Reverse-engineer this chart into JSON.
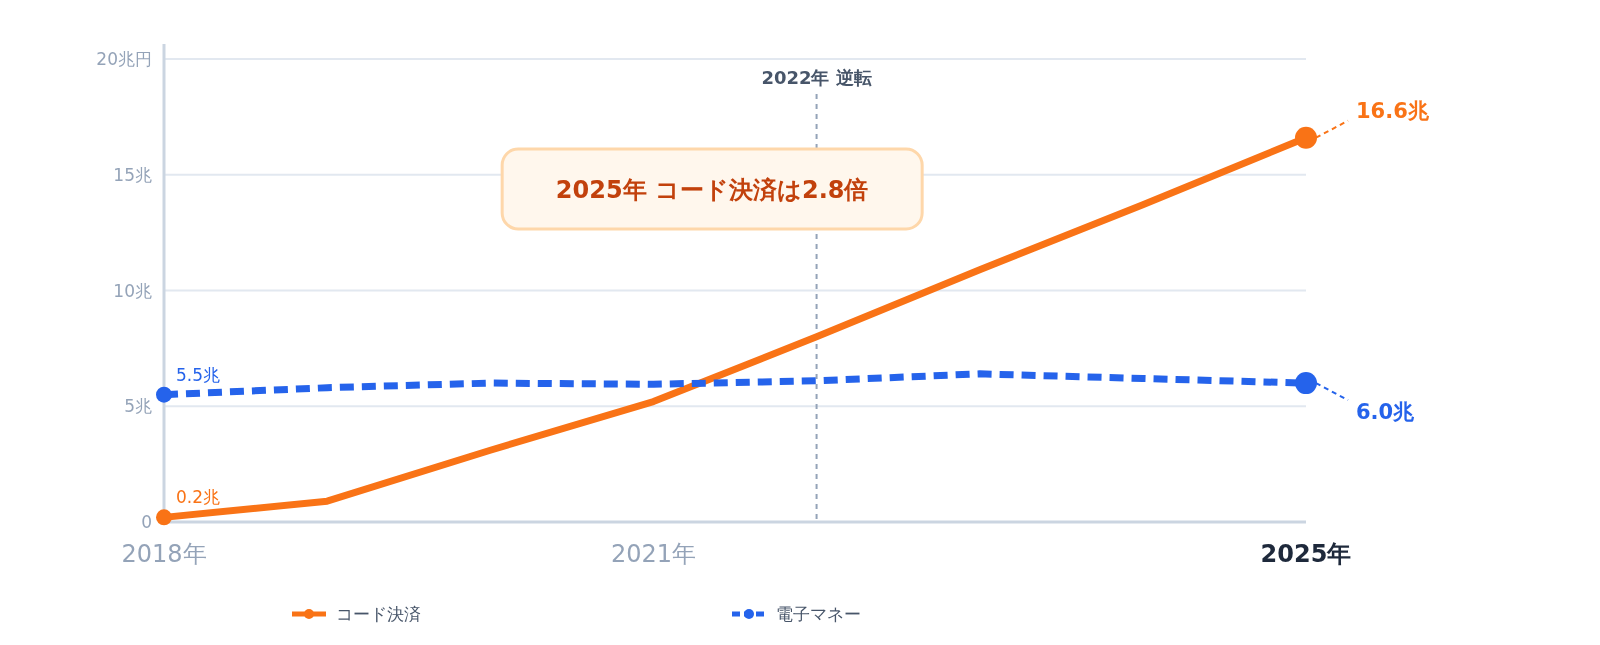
{
  "chart_data": {
    "type": "line",
    "x": [
      2018,
      2019,
      2020,
      2021,
      2022,
      2023,
      2024,
      2025
    ],
    "xlim": [
      2018,
      2025
    ],
    "xticks": [
      {
        "value": 2018,
        "label": "2018年"
      },
      {
        "value": 2021,
        "label": "2021年"
      },
      {
        "value": 2025,
        "label": "2025年"
      }
    ],
    "ylim": [
      0,
      20
    ],
    "yticks": [
      {
        "value": 0,
        "label": "0"
      },
      {
        "value": 5,
        "label": "5兆"
      },
      {
        "value": 10,
        "label": "10兆"
      },
      {
        "value": 15,
        "label": "15兆"
      },
      {
        "value": 20,
        "label": "20兆円"
      }
    ],
    "grid": "y",
    "legend": "bottom",
    "series": [
      {
        "name": "コード決済",
        "color": "#f97316",
        "line_style": "solid",
        "values": [
          0.2,
          0.9,
          3.1,
          5.2,
          8.0,
          10.9,
          13.7,
          16.6
        ],
        "value_labels": [
          "0.2兆",
          null,
          null,
          null,
          null,
          null,
          null,
          "16.6兆"
        ]
      },
      {
        "name": "電子マネー",
        "color": "#2563eb",
        "line_style": "dashed",
        "values": [
          5.5,
          5.8,
          6.0,
          5.95,
          6.1,
          6.4,
          6.2,
          6.0
        ],
        "value_labels": [
          "5.5兆",
          null,
          null,
          null,
          null,
          null,
          null,
          "6.0兆"
        ]
      }
    ],
    "ref_lines": [
      {
        "axis": "x",
        "value": 2022,
        "label": "2022年 逆転",
        "line_style": "dashed",
        "color": "#94a3b8"
      }
    ],
    "annotations": [
      "2025年 コード決済は2.8倍"
    ]
  }
}
